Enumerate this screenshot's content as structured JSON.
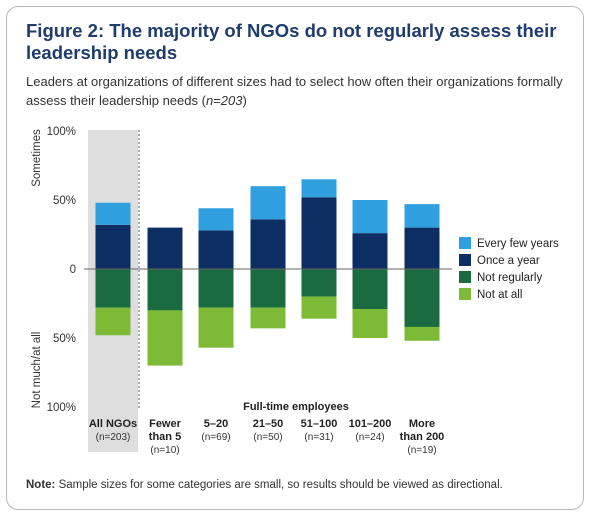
{
  "header": {
    "title": "Figure 2: The majority of NGOs do not regularly assess their leadership needs",
    "subtitle_main": "Leaders at organizations of different sizes had to select how often their organizations formally assess their leadership needs (",
    "subtitle_n": "n=203",
    "subtitle_end": ")"
  },
  "footer": {
    "note_label": "Note:",
    "note_text": " Sample sizes for some categories are small, so results should be viewed as directional."
  },
  "chart_data": {
    "type": "bar",
    "stacked": "diverging",
    "title": "",
    "xlabel": "Full-time employees",
    "ylabel_top": "Sometimes",
    "ylabel_bottom": "Not much/at all",
    "yticks": [
      "100%",
      "50%",
      "0",
      "50%",
      "100%"
    ],
    "ylim": [
      -100,
      100
    ],
    "categories": [
      {
        "label": [
          "All NGOs"
        ],
        "n": "(n=203)",
        "highlight": true
      },
      {
        "label": [
          "Fewer",
          "than 5"
        ],
        "n": "(n=10)"
      },
      {
        "label": [
          "5–20"
        ],
        "n": "(n=69)"
      },
      {
        "label": [
          "21–50"
        ],
        "n": "(n=50)"
      },
      {
        "label": [
          "51–100"
        ],
        "n": "(n=31)"
      },
      {
        "label": [
          "101–200"
        ],
        "n": "(n=24)"
      },
      {
        "label": [
          "More",
          "than 200"
        ],
        "n": "(n=19)"
      }
    ],
    "series": [
      {
        "name": "Every few years",
        "direction": "up",
        "color": "#2f9fe0",
        "values": [
          16,
          0,
          16,
          24,
          13,
          24,
          17
        ]
      },
      {
        "name": "Once a year",
        "direction": "up",
        "color": "#0d2e63",
        "values": [
          32,
          30,
          28,
          36,
          52,
          26,
          30
        ]
      },
      {
        "name": "Not regularly",
        "direction": "down",
        "color": "#1a6b3f",
        "values": [
          28,
          30,
          28,
          28,
          20,
          29,
          42
        ]
      },
      {
        "name": "Not at all",
        "direction": "down",
        "color": "#7dbb36",
        "values": [
          20,
          40,
          29,
          15,
          16,
          21,
          10
        ]
      }
    ],
    "legend_position": "right"
  }
}
